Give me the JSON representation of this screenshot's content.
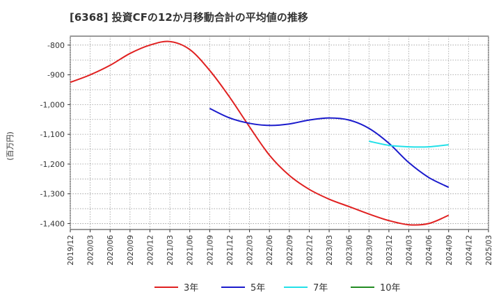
{
  "chart_data": {
    "type": "line",
    "title": "[6368]  投資CFの12か月移動合計の平均値の推移",
    "ylabel": "(百万円)",
    "xlabel": "",
    "ylim": [
      -1420,
      -770
    ],
    "yticks": [
      -800,
      -900,
      -1000,
      -1100,
      -1200,
      -1300,
      -1400
    ],
    "ytick_labels": [
      "-800",
      "-900",
      "-1,000",
      "-1,100",
      "-1,200",
      "-1,300",
      "-1,400"
    ],
    "xticks": [
      "2019/12",
      "2020/03",
      "2020/06",
      "2020/09",
      "2020/12",
      "2021/03",
      "2021/06",
      "2021/09",
      "2021/12",
      "2022/03",
      "2022/06",
      "2022/09",
      "2022/12",
      "2023/03",
      "2023/06",
      "2023/09",
      "2023/12",
      "2024/03",
      "2024/06",
      "2024/09",
      "2024/12",
      "2025/03"
    ],
    "grid": true,
    "legend_position": "bottom",
    "series": [
      {
        "name": "3年",
        "color": "#e02020",
        "points": [
          [
            "2019/12",
            -925
          ],
          [
            "2020/03",
            -900
          ],
          [
            "2020/06",
            -868
          ],
          [
            "2020/09",
            -828
          ],
          [
            "2020/12",
            -800
          ],
          [
            "2021/03",
            -788
          ],
          [
            "2021/06",
            -815
          ],
          [
            "2021/09",
            -885
          ],
          [
            "2021/12",
            -975
          ],
          [
            "2022/03",
            -1075
          ],
          [
            "2022/06",
            -1170
          ],
          [
            "2022/09",
            -1238
          ],
          [
            "2022/12",
            -1285
          ],
          [
            "2023/03",
            -1318
          ],
          [
            "2023/06",
            -1343
          ],
          [
            "2023/09",
            -1368
          ],
          [
            "2023/12",
            -1390
          ],
          [
            "2024/03",
            -1404
          ],
          [
            "2024/06",
            -1400
          ],
          [
            "2024/09",
            -1372
          ]
        ]
      },
      {
        "name": "5年",
        "color": "#1a1acc",
        "points": [
          [
            "2021/09",
            -1013
          ],
          [
            "2021/12",
            -1045
          ],
          [
            "2022/03",
            -1063
          ],
          [
            "2022/06",
            -1070
          ],
          [
            "2022/09",
            -1065
          ],
          [
            "2022/12",
            -1052
          ],
          [
            "2023/03",
            -1045
          ],
          [
            "2023/06",
            -1052
          ],
          [
            "2023/09",
            -1080
          ],
          [
            "2023/12",
            -1130
          ],
          [
            "2024/03",
            -1195
          ],
          [
            "2024/06",
            -1245
          ],
          [
            "2024/09",
            -1278
          ]
        ]
      },
      {
        "name": "7年",
        "color": "#22e0e8",
        "points": [
          [
            "2023/09",
            -1123
          ],
          [
            "2023/12",
            -1137
          ],
          [
            "2024/03",
            -1142
          ],
          [
            "2024/06",
            -1142
          ],
          [
            "2024/09",
            -1135
          ]
        ]
      },
      {
        "name": "10年",
        "color": "#228b22",
        "points": []
      }
    ]
  }
}
